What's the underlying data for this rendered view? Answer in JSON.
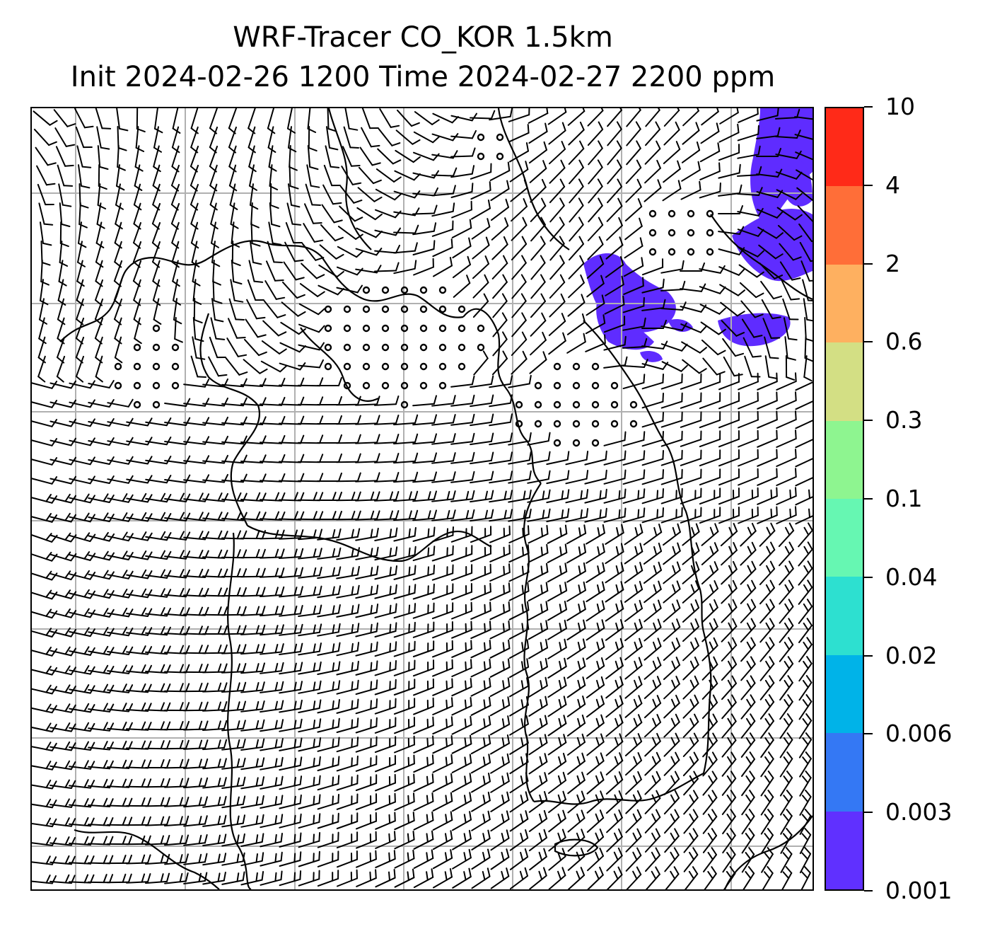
{
  "title": {
    "line1": "WRF-Tracer CO_KOR 1.5km",
    "line2": "Init 2024-02-26 1200 Time 2024-02-27 2200 ppm"
  },
  "map": {
    "grid": "on",
    "layers": [
      "coastlines",
      "wind-barbs",
      "CO tracer concentration"
    ],
    "tracer_color": "#5f2cff",
    "tracer_locations": [
      "north-east",
      "east-centre-north"
    ],
    "barb_color": "#000000",
    "grid_color": "#b0b0b0"
  },
  "colorbar": {
    "ticks": [
      "0.001",
      "0.003",
      "0.006",
      "0.02",
      "0.04",
      "0.1",
      "0.3",
      "0.6",
      "2",
      "4",
      "10"
    ],
    "colors": [
      "#6030ff",
      "#3478f4",
      "#00b3e8",
      "#2de0d0",
      "#66f7b2",
      "#8ef590",
      "#d3df84",
      "#feb060",
      "#ff6e38",
      "#ff2a18"
    ]
  }
}
